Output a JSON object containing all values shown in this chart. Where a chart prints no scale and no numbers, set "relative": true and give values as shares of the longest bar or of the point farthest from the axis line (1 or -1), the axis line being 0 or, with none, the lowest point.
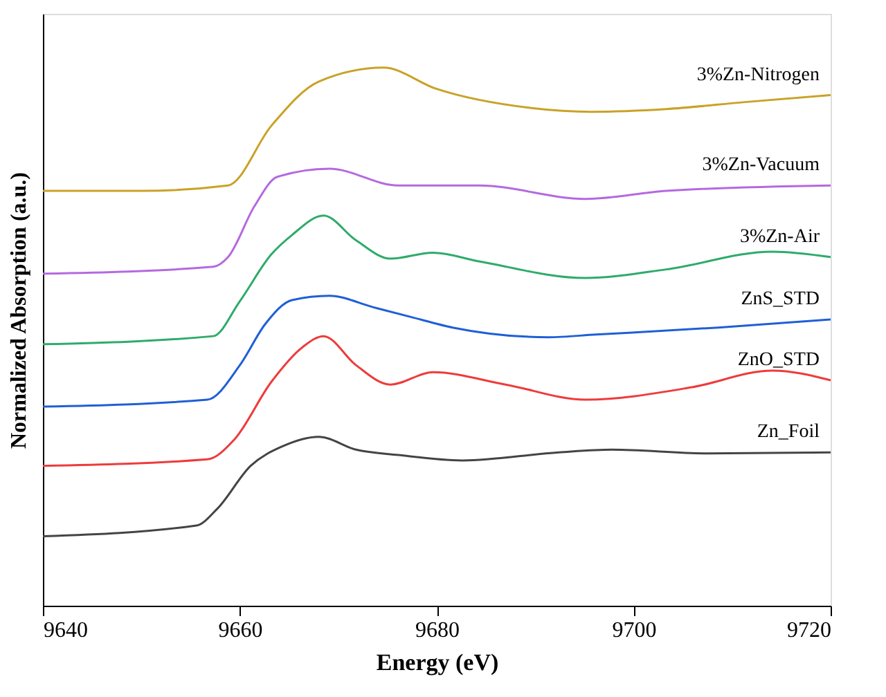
{
  "chart_data": {
    "type": "line",
    "xlabel": "Energy (eV)",
    "ylabel": "Normalized Absorption (a.u.)",
    "relative": true,
    "xlim": [
      9640,
      9720
    ],
    "xticks": [
      9640,
      9660,
      9680,
      9700,
      9720
    ],
    "grid": false,
    "legend": false,
    "marker": "none",
    "line_style": "solid",
    "series": [
      {
        "name": "3%Zn-Nitrogen",
        "color": "#c9a227",
        "x": [
          9640,
          9650,
          9658.8,
          9663.2,
          9668.0,
          9674.6,
          9679.9,
          9689.6,
          9695.7,
          9703.3,
          9711.3,
          9720
        ],
        "values": [
          0.771,
          0.771,
          0.781,
          0.892,
          0.974,
          1.0,
          0.961,
          0.925,
          0.918,
          0.923,
          0.936,
          0.949
        ]
      },
      {
        "name": "3%Zn-Vacuum",
        "color": "#b469e0",
        "x": [
          9640,
          9657.3,
          9658.8,
          9661.5,
          9663.8,
          9669.1,
          9676.1,
          9684.3,
          9695.1,
          9703.3,
          9720
        ],
        "values": [
          0.617,
          0.63,
          0.648,
          0.743,
          0.797,
          0.812,
          0.781,
          0.781,
          0.756,
          0.771,
          0.781
        ]
      },
      {
        "name": "3%Zn-Air",
        "color": "#2eab6a",
        "x": [
          9640,
          9657.3,
          9660.0,
          9663.2,
          9665.3,
          9668.5,
          9671.8,
          9675.3,
          9679.6,
          9684.3,
          9695.1,
          9703.3,
          9714.1,
          9720
        ],
        "values": [
          0.486,
          0.501,
          0.566,
          0.653,
          0.689,
          0.725,
          0.679,
          0.645,
          0.656,
          0.64,
          0.609,
          0.625,
          0.658,
          0.648
        ]
      },
      {
        "name": "ZnS_STD",
        "color": "#1f5fd6",
        "x": [
          9640,
          9656.7,
          9660.0,
          9662.6,
          9665.3,
          9669.1,
          9673.5,
          9677.3,
          9681.6,
          9691.3,
          9696.2,
          9708.6,
          9720
        ],
        "values": [
          0.37,
          0.383,
          0.447,
          0.524,
          0.568,
          0.576,
          0.555,
          0.537,
          0.517,
          0.499,
          0.504,
          0.517,
          0.532
        ]
      },
      {
        "name": "ZnO_STD",
        "color": "#ee3b3b",
        "x": [
          9640,
          9656.7,
          9659.4,
          9663.2,
          9666.4,
          9668.5,
          9671.8,
          9675.3,
          9679.6,
          9687.0,
          9695.1,
          9705.9,
          9714.1,
          9720
        ],
        "values": [
          0.26,
          0.272,
          0.308,
          0.416,
          0.481,
          0.501,
          0.447,
          0.411,
          0.434,
          0.411,
          0.383,
          0.406,
          0.437,
          0.419
        ]
      },
      {
        "name": "Zn_Foil",
        "color": "#444444",
        "x": [
          9640,
          9655.6,
          9657.7,
          9661.1,
          9664.3,
          9668.0,
          9671.8,
          9676.1,
          9682.6,
          9692.4,
          9697.8,
          9707.5,
          9720
        ],
        "values": [
          0.129,
          0.149,
          0.18,
          0.26,
          0.296,
          0.314,
          0.29,
          0.28,
          0.27,
          0.285,
          0.29,
          0.283,
          0.285
        ]
      }
    ]
  }
}
